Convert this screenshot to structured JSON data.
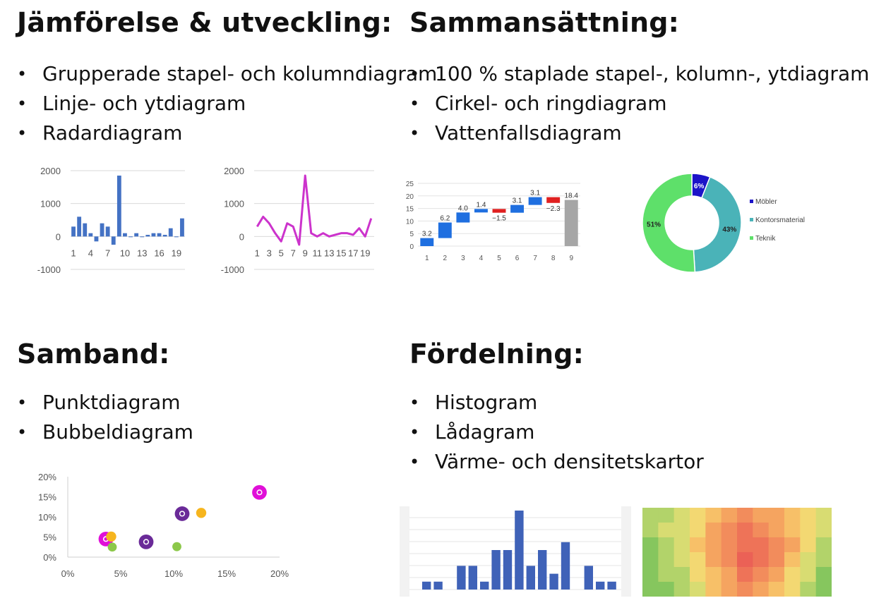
{
  "sections": {
    "comparison": {
      "title": "Jämförelse & utveckling:",
      "items": [
        "Grupperade stapel- och kolumndiagram",
        "Linje- och ytdiagram",
        "Radardiagram"
      ]
    },
    "composition": {
      "title": "Sammansättning:",
      "items": [
        "100 % staplade stapel-, kolumn-, ytdiagram",
        "Cirkel- och ringdiagram",
        "Vattenfallsdiagram"
      ]
    },
    "relationship": {
      "title": "Samband:",
      "items": [
        "Punktdiagram",
        "Bubbeldiagram"
      ]
    },
    "distribution": {
      "title": "Fördelning:",
      "items": [
        "Histogram",
        "Lådagram",
        "Värme- och densitetskartor"
      ]
    }
  },
  "colors": {
    "bar_blue": "#4472c4",
    "line_magenta": "#cc33cc",
    "wf_up": "#1f6fe0",
    "wf_down": "#e02020",
    "wf_total": "#a6a6a6",
    "donut_blue": "#1c14c8",
    "donut_teal": "#4ab3b8",
    "donut_green": "#5ee06a",
    "hist_bar": "#3f62b8",
    "bubble_magenta": "#e010d8",
    "bubble_purple": "#6a2a98",
    "bubble_orange": "#f6b51e",
    "bubble_green": "#8cc84a"
  },
  "chart_data": [
    {
      "id": "column",
      "type": "bar",
      "categories": [
        "1",
        "2",
        "3",
        "4",
        "5",
        "6",
        "7",
        "8",
        "9",
        "10",
        "11",
        "12",
        "13",
        "14",
        "15",
        "16",
        "17",
        "18",
        "19",
        "20"
      ],
      "values": [
        300,
        600,
        400,
        100,
        -150,
        400,
        300,
        -250,
        1850,
        100,
        0,
        100,
        0,
        50,
        100,
        100,
        50,
        250,
        0,
        550
      ],
      "tick_labels": [
        "1",
        "4",
        "7",
        "10",
        "13",
        "16",
        "19"
      ],
      "y_ticks": [
        "2000",
        "1000",
        "0",
        "-1000"
      ],
      "ylim": [
        -1000,
        2000
      ],
      "grid": true
    },
    {
      "id": "line",
      "type": "line",
      "x": [
        1,
        2,
        3,
        4,
        5,
        6,
        7,
        8,
        9,
        10,
        11,
        12,
        13,
        14,
        15,
        16,
        17,
        18,
        19,
        20
      ],
      "values": [
        300,
        600,
        400,
        100,
        -150,
        400,
        300,
        -250,
        1850,
        100,
        0,
        100,
        0,
        50,
        100,
        100,
        50,
        250,
        0,
        550
      ],
      "tick_labels": [
        "1",
        "3",
        "5",
        "7",
        "9",
        "11",
        "13",
        "15",
        "17",
        "19"
      ],
      "y_ticks": [
        "2000",
        "1000",
        "0",
        "-1000"
      ],
      "ylim": [
        -1000,
        2000
      ],
      "grid": true
    },
    {
      "id": "waterfall",
      "type": "bar",
      "categories": [
        "1",
        "2",
        "3",
        "4",
        "5",
        "6",
        "7",
        "8",
        "9"
      ],
      "values": [
        3.2,
        6.2,
        4.0,
        1.4,
        -1.5,
        3.1,
        3.1,
        -2.3,
        18.4
      ],
      "labels": [
        "3.2",
        "6.2",
        "4.0",
        "1.4",
        "−1.5",
        "3.1",
        "3.1",
        "−2.3",
        "18.4"
      ],
      "total_index": 8,
      "y_ticks": [
        "25",
        "20",
        "15",
        "10",
        "5",
        "0"
      ],
      "ylim": [
        0,
        25
      ],
      "grid": true
    },
    {
      "id": "donut",
      "type": "pie",
      "labels": [
        "Möbler",
        "Kontorsmaterial",
        "Teknik"
      ],
      "values": [
        6,
        43,
        51
      ],
      "value_labels": [
        "6%",
        "43%",
        "51%"
      ],
      "legend": "right"
    },
    {
      "id": "bubble",
      "type": "scatter",
      "x_ticks": [
        "0%",
        "5%",
        "10%",
        "15%",
        "20%"
      ],
      "y_ticks": [
        "20%",
        "15%",
        "10%",
        "5%",
        "0%"
      ],
      "xlim": [
        0,
        20
      ],
      "ylim": [
        0,
        20
      ],
      "points": [
        {
          "x": 3.6,
          "y": 4.5,
          "size": 1.3,
          "color": "bubble_magenta",
          "ring": true
        },
        {
          "x": 4.1,
          "y": 5.1,
          "size": 0.9,
          "color": "bubble_orange",
          "ring": false
        },
        {
          "x": 4.2,
          "y": 2.5,
          "size": 0.8,
          "color": "bubble_green",
          "ring": false
        },
        {
          "x": 7.4,
          "y": 3.8,
          "size": 1.3,
          "color": "bubble_purple",
          "ring": true
        },
        {
          "x": 10.3,
          "y": 2.6,
          "size": 0.8,
          "color": "bubble_green",
          "ring": false
        },
        {
          "x": 10.8,
          "y": 10.8,
          "size": 1.3,
          "color": "bubble_purple",
          "ring": true
        },
        {
          "x": 12.6,
          "y": 11.0,
          "size": 0.9,
          "color": "bubble_orange",
          "ring": false
        },
        {
          "x": 18.1,
          "y": 16.1,
          "size": 1.3,
          "color": "bubble_magenta",
          "ring": true
        }
      ]
    },
    {
      "id": "histogram",
      "type": "bar",
      "values": [
        1,
        1,
        0,
        3,
        3,
        1,
        5,
        5,
        10,
        3,
        5,
        2,
        6,
        0,
        3,
        1,
        1
      ]
    },
    {
      "id": "heatmap",
      "type": "heatmap",
      "values": [
        [
          2,
          2,
          3,
          4,
          5,
          6,
          7,
          6,
          6,
          5,
          4,
          3
        ],
        [
          2,
          3,
          3,
          4,
          6,
          7,
          8,
          7,
          6,
          5,
          4,
          3
        ],
        [
          1,
          2,
          3,
          5,
          6,
          7,
          8,
          8,
          7,
          6,
          4,
          2
        ],
        [
          1,
          2,
          3,
          4,
          6,
          7,
          9,
          8,
          7,
          5,
          3,
          2
        ],
        [
          1,
          2,
          2,
          4,
          5,
          6,
          8,
          7,
          6,
          4,
          3,
          1
        ],
        [
          1,
          1,
          2,
          3,
          5,
          6,
          7,
          6,
          5,
          4,
          2,
          1
        ]
      ],
      "palette": [
        "#5fba5c",
        "#86c65e",
        "#b2d36a",
        "#d8dc72",
        "#f3d872",
        "#f7c068",
        "#f5a460",
        "#f28c5c",
        "#ee7358",
        "#eb6156"
      ]
    }
  ]
}
